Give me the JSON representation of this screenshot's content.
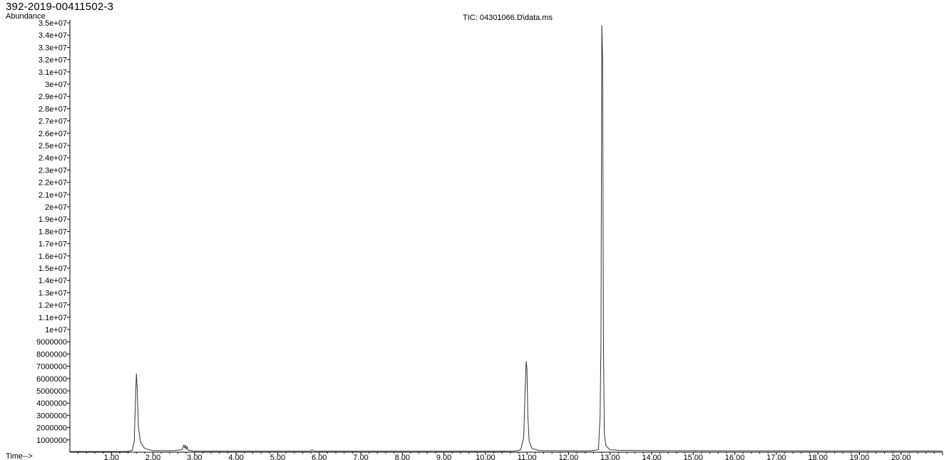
{
  "sample_id": "392-2019-00411502-3",
  "chart_data": {
    "type": "line",
    "title": "TIC: 04301066.D\\data.ms",
    "ylabel": "Abundance",
    "xlabel": "Time-->",
    "xlim": [
      0.0,
      21.0
    ],
    "ylim": [
      0,
      35000000
    ],
    "x_ticks": [
      "1.00",
      "2.00",
      "3.00",
      "4.00",
      "5.00",
      "6.00",
      "7.00",
      "8.00",
      "9.00",
      "10.00",
      "11.00",
      "12.00",
      "13.00",
      "14.00",
      "15.00",
      "16.00",
      "17.00",
      "18.00",
      "19.00",
      "20.00"
    ],
    "y_ticks": [
      "1000000",
      "2000000",
      "3000000",
      "4000000",
      "5000000",
      "6000000",
      "7000000",
      "8000000",
      "9000000",
      "1e+07",
      "1.1e+07",
      "1.2e+07",
      "1.3e+07",
      "1.4e+07",
      "1.5e+07",
      "1.6e+07",
      "1.7e+07",
      "1.8e+07",
      "1.9e+07",
      "2e+07",
      "2.1e+07",
      "2.2e+07",
      "2.3e+07",
      "2.4e+07",
      "2.5e+07",
      "2.6e+07",
      "2.7e+07",
      "2.8e+07",
      "2.9e+07",
      "3e+07",
      "3.1e+07",
      "3.2e+07",
      "3.3e+07",
      "3.4e+07",
      "3.5e+07"
    ],
    "series": [
      {
        "color": "#333333",
        "x": [
          0.0,
          1.4,
          1.5,
          1.55,
          1.58,
          1.6,
          1.62,
          1.65,
          1.7,
          1.8,
          2.0,
          2.5,
          2.7,
          2.74,
          2.76,
          2.78,
          2.8,
          2.82,
          2.84,
          2.86,
          3.0,
          5.8,
          5.83,
          5.86,
          10.7,
          10.85,
          10.92,
          10.95,
          10.98,
          11.0,
          11.02,
          11.05,
          11.12,
          11.3,
          12.5,
          12.72,
          12.76,
          12.78,
          12.8,
          12.82,
          12.84,
          12.86,
          12.9,
          13.0,
          13.2,
          14.0,
          16.0,
          18.0,
          20.0,
          21.0
        ],
        "y": [
          50000,
          60000,
          150000,
          900000,
          4500000,
          6400000,
          5200000,
          2000000,
          800000,
          300000,
          120000,
          120000,
          200000,
          550000,
          350000,
          550000,
          250000,
          450000,
          200000,
          150000,
          80000,
          80000,
          200000,
          80000,
          80000,
          200000,
          1200000,
          4500000,
          7400000,
          6800000,
          3000000,
          900000,
          300000,
          120000,
          100000,
          200000,
          3000000,
          9000000,
          34800000,
          32000000,
          9000000,
          1500000,
          500000,
          200000,
          150000,
          120000,
          110000,
          100000,
          100000,
          100000
        ]
      }
    ]
  }
}
